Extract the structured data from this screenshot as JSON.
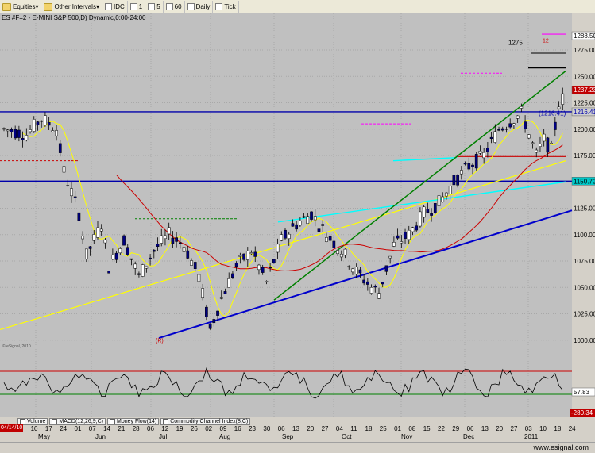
{
  "toolbar": {
    "items": [
      {
        "label": "Equities",
        "icon": "folder-icon",
        "suffix": "▾"
      },
      {
        "label": "Other Intervals",
        "icon": "folder-icon",
        "suffix": "▾"
      },
      {
        "label": "IDC",
        "icon": "checkbox-icon"
      },
      {
        "label": "1",
        "icon": "checkbox-icon"
      },
      {
        "label": "5",
        "icon": "checkbox-icon"
      },
      {
        "label": "60",
        "icon": "checkbox-icon"
      },
      {
        "label": "Daily",
        "icon": "checkbox-icon"
      },
      {
        "label": "Tick",
        "icon": "checkbox-icon"
      }
    ]
  },
  "chart": {
    "symbol_title": "ES #F=2 - E-MINI S&P 500,D) Dynamic,0:00-24:00",
    "watermark": "© eSignal, 2010",
    "price_levels": [
      "1275.00",
      "1250.00",
      "1225.00",
      "1200.00",
      "1175.00",
      "1150.00",
      "1125.00",
      "1100.00",
      "1075.00",
      "1050.00",
      "1025.00",
      "1000.00"
    ],
    "price_tags": [
      {
        "text": "1288.50",
        "bg": "#ffffff",
        "fg": "#000000"
      },
      {
        "text": "1237.23",
        "bg": "#c00000",
        "fg": "#ffffff"
      },
      {
        "text": "1216.41",
        "bg": "#cfcfcf",
        "fg": "#0000aa"
      },
      {
        "text": "1150.70",
        "bg": "#00c8c8",
        "fg": "#000000"
      }
    ],
    "annotation_1275": "1275",
    "annotation_1216": "(1216.41)",
    "annotation_R": "(R)",
    "annotation_12": "12"
  },
  "indicator": {
    "value_tag": "57.83",
    "low_tag": "-280.34"
  },
  "tabs": [
    "Volume",
    "MACD(12,26,9,C)",
    "Money Flow(14)",
    "Commodity Channel Index(8,C)"
  ],
  "date_box": "04/14/10",
  "x_axis": {
    "days": [
      "26",
      "03",
      "10",
      "17",
      "24",
      "01",
      "07",
      "14",
      "21",
      "28",
      "06",
      "12",
      "19",
      "26",
      "02",
      "09",
      "16",
      "23",
      "30",
      "06",
      "13",
      "20",
      "27",
      "04",
      "11",
      "18",
      "25",
      "01",
      "08",
      "15",
      "22",
      "29",
      "06",
      "13",
      "20",
      "27",
      "03",
      "10",
      "18",
      "24"
    ],
    "months": [
      "May",
      "Jun",
      "Jul",
      "Aug",
      "Sep",
      "Oct",
      "Nov",
      "Dec",
      "2011"
    ]
  },
  "footer": "www.esignal.com",
  "colors": {
    "background": "#c0c0c0",
    "candle_up": "#ffffff",
    "candle_down": "#000080",
    "trend_green": "#008000",
    "trend_blue": "#0000cc",
    "trend_yellow": "#ffff00",
    "trend_cyan": "#00ffff",
    "ma_red": "#cc0000",
    "level_blue": "#0000aa"
  }
}
